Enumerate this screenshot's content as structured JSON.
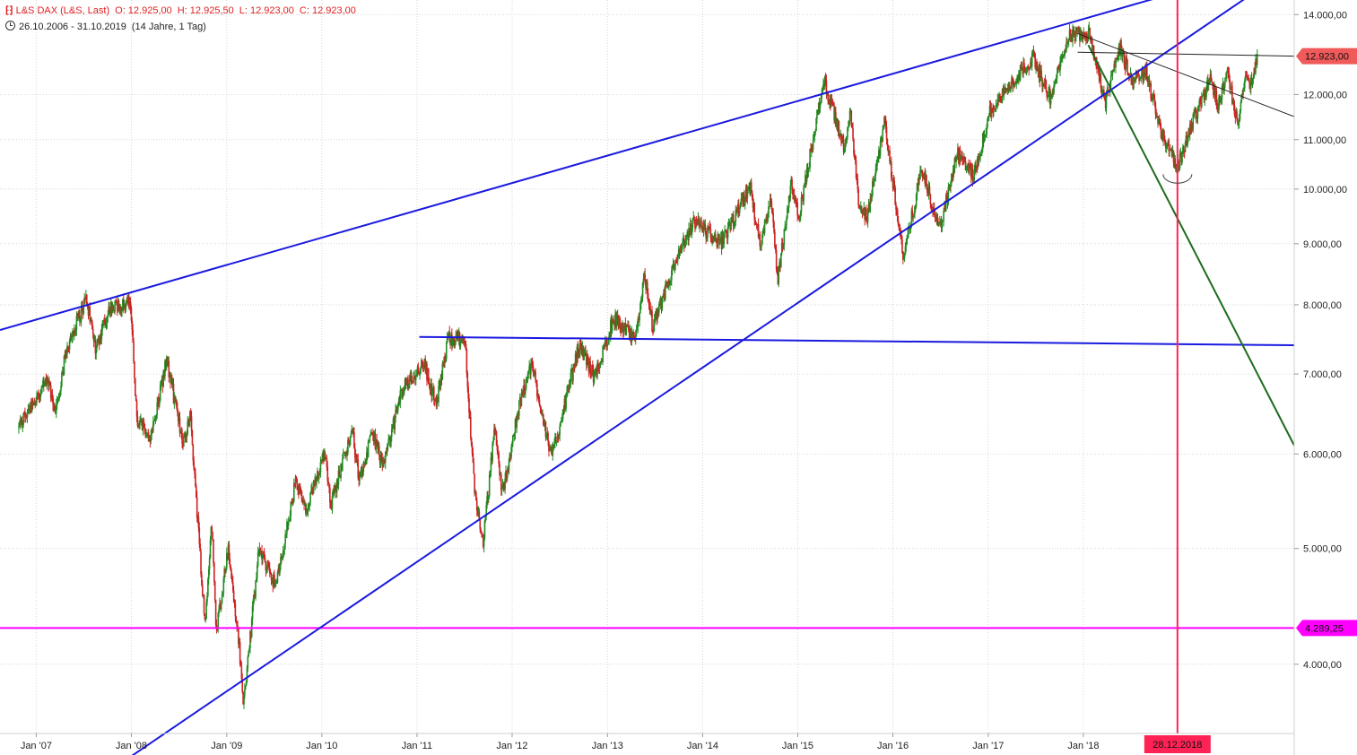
{
  "header": {
    "symbol": "L&S DAX (L&S, Last)",
    "open": "O: 12.925,00",
    "high": "H: 12.925,50",
    "low": "L: 12.923,00",
    "close": "C: 12.923,00",
    "range": "26.10.2006 - 31.10.2019",
    "span": "(14 Jahre, 1 Tag)"
  },
  "colors": {
    "up": "#228b22",
    "down": "#cc2222",
    "trend_blue": "#1a1ae0",
    "trend_green": "#1e6b1e",
    "support_magenta": "#ff00ff",
    "crosshair": "#ff2255",
    "last_badge": "#f05a5a"
  },
  "chart_data": {
    "type": "candlestick",
    "y_scale": "log",
    "ylim": [
      3500,
      14400
    ],
    "xlim": [
      "2006-08-15",
      "2020-03-20"
    ],
    "y_ticks": [
      {
        "value": 4000,
        "label": "4.000,00"
      },
      {
        "value": 5000,
        "label": "5.000,00"
      },
      {
        "value": 6000,
        "label": "6.000,00"
      },
      {
        "value": 7000,
        "label": "7.000,00"
      },
      {
        "value": 8000,
        "label": "8.000,00"
      },
      {
        "value": 9000,
        "label": "9.000,00"
      },
      {
        "value": 10000,
        "label": "10.000,00"
      },
      {
        "value": 11000,
        "label": "11.000,00"
      },
      {
        "value": 12000,
        "label": "12.000,00"
      },
      {
        "value": 14000,
        "label": "14.000,00"
      }
    ],
    "x_ticks": [
      {
        "date": "2007-01-01",
        "label": "Jan '07"
      },
      {
        "date": "2008-01-01",
        "label": "Jan '08"
      },
      {
        "date": "2009-01-01",
        "label": "Jan '09"
      },
      {
        "date": "2010-01-01",
        "label": "Jan '10"
      },
      {
        "date": "2011-01-01",
        "label": "Jan '11"
      },
      {
        "date": "2012-01-01",
        "label": "Jan '12"
      },
      {
        "date": "2013-01-01",
        "label": "Jan '13"
      },
      {
        "date": "2014-01-01",
        "label": "Jan '14"
      },
      {
        "date": "2015-01-01",
        "label": "Jan '15"
      },
      {
        "date": "2016-01-01",
        "label": "Jan '16"
      },
      {
        "date": "2017-01-01",
        "label": "Jan '17"
      },
      {
        "date": "2018-01-01",
        "label": "Jan '18"
      }
    ],
    "grid": true,
    "price_path": [
      [
        "2006-10-26",
        6300
      ],
      [
        "2006-12-01",
        6550
      ],
      [
        "2007-02-15",
        6900
      ],
      [
        "2007-03-14",
        6500
      ],
      [
        "2007-05-01",
        7400
      ],
      [
        "2007-07-13",
        8100
      ],
      [
        "2007-08-16",
        7350
      ],
      [
        "2007-10-10",
        7950
      ],
      [
        "2007-12-28",
        8050
      ],
      [
        "2008-01-22",
        6400
      ],
      [
        "2008-03-17",
        6200
      ],
      [
        "2008-05-15",
        7200
      ],
      [
        "2008-07-15",
        6150
      ],
      [
        "2008-08-15",
        6450
      ],
      [
        "2008-10-10",
        4300
      ],
      [
        "2008-11-04",
        5300
      ],
      [
        "2008-11-21",
        4250
      ],
      [
        "2009-01-06",
        5000
      ],
      [
        "2009-02-15",
        4200
      ],
      [
        "2009-03-06",
        3700
      ],
      [
        "2009-05-05",
        5000
      ],
      [
        "2009-07-10",
        4650
      ],
      [
        "2009-09-23",
        5700
      ],
      [
        "2009-11-02",
        5350
      ],
      [
        "2010-01-12",
        6050
      ],
      [
        "2010-02-05",
        5450
      ],
      [
        "2010-04-26",
        6300
      ],
      [
        "2010-05-25",
        5700
      ],
      [
        "2010-07-15",
        6250
      ],
      [
        "2010-08-25",
        5850
      ],
      [
        "2010-11-05",
        6800
      ],
      [
        "2011-01-28",
        7150
      ],
      [
        "2011-03-16",
        6600
      ],
      [
        "2011-05-02",
        7520
      ],
      [
        "2011-07-05",
        7450
      ],
      [
        "2011-08-09",
        5600
      ],
      [
        "2011-09-12",
        5050
      ],
      [
        "2011-10-27",
        6350
      ],
      [
        "2011-11-23",
        5550
      ],
      [
        "2012-01-30",
        6600
      ],
      [
        "2012-03-16",
        7150
      ],
      [
        "2012-06-01",
        5950
      ],
      [
        "2012-09-14",
        7400
      ],
      [
        "2012-11-14",
        6950
      ],
      [
        "2013-01-24",
        7800
      ],
      [
        "2013-04-18",
        7450
      ],
      [
        "2013-05-22",
        8500
      ],
      [
        "2013-06-24",
        7650
      ],
      [
        "2013-09-20",
        8700
      ],
      [
        "2013-12-02",
        9400
      ],
      [
        "2014-03-14",
        9000
      ],
      [
        "2014-07-03",
        10050
      ],
      [
        "2014-08-08",
        9000
      ],
      [
        "2014-09-19",
        9800
      ],
      [
        "2014-10-16",
        8400
      ],
      [
        "2014-12-05",
        10100
      ],
      [
        "2015-01-05",
        9450
      ],
      [
        "2015-04-10",
        12350
      ],
      [
        "2015-06-29",
        10800
      ],
      [
        "2015-07-20",
        11700
      ],
      [
        "2015-08-24",
        9650
      ],
      [
        "2015-09-24",
        9450
      ],
      [
        "2015-11-30",
        11400
      ],
      [
        "2016-02-11",
        8750
      ],
      [
        "2016-04-20",
        10400
      ],
      [
        "2016-06-27",
        9250
      ],
      [
        "2016-09-05",
        10700
      ],
      [
        "2016-11-04",
        10250
      ],
      [
        "2017-01-10",
        11650
      ],
      [
        "2017-06-20",
        12900
      ],
      [
        "2017-08-29",
        11900
      ],
      [
        "2017-11-03",
        13450
      ],
      [
        "2018-01-23",
        13550
      ],
      [
        "2018-03-26",
        11800
      ],
      [
        "2018-05-22",
        13150
      ],
      [
        "2018-07-05",
        12300
      ],
      [
        "2018-08-28",
        12550
      ],
      [
        "2018-10-26",
        11200
      ],
      [
        "2018-12-27",
        10400
      ],
      [
        "2019-02-18",
        11300
      ],
      [
        "2019-05-03",
        12400
      ],
      [
        "2019-06-03",
        11750
      ],
      [
        "2019-07-04",
        12600
      ],
      [
        "2019-08-15",
        11400
      ],
      [
        "2019-09-20",
        12450
      ],
      [
        "2019-10-01",
        12150
      ],
      [
        "2019-10-31",
        12923
      ]
    ],
    "drawings": [
      {
        "kind": "trendline",
        "color_key": "trend_blue",
        "width": 2,
        "p1": [
          "2006-08-15",
          7620
        ],
        "p2": [
          "2020-03-20",
          15600
        ]
      },
      {
        "kind": "trendline",
        "color_key": "trend_blue",
        "width": 2,
        "p1": [
          "2008-01-01",
          3350
        ],
        "p2": [
          "2020-03-20",
          15400
        ]
      },
      {
        "kind": "trendline",
        "color_key": "trend_blue",
        "width": 2,
        "p1": [
          "2011-01-10",
          7520
        ],
        "p2": [
          "2020-03-20",
          7400
        ]
      },
      {
        "kind": "trendline",
        "color_key": "trend_green",
        "width": 2,
        "p1": [
          "2018-01-20",
          13200
        ],
        "p2": [
          "2020-03-20",
          6100
        ]
      },
      {
        "kind": "trendline",
        "color_key": "black",
        "width": 1,
        "p1": [
          "2017-12-10",
          13500
        ],
        "p2": [
          "2020-03-20",
          11500
        ]
      },
      {
        "kind": "trendline",
        "color_key": "black",
        "width": 1,
        "p1": [
          "2017-12-10",
          13020
        ],
        "p2": [
          "2020-03-20",
          12923
        ]
      }
    ],
    "support_level": {
      "value": 4289.25,
      "label": "4.289,25"
    },
    "last_price": {
      "value": 12923,
      "label": "12.923,00"
    },
    "crosshair": {
      "date": "2018-12-28",
      "label": "28.12.2018"
    },
    "low_marker": {
      "date": "2018-12-28",
      "value": 10150
    }
  }
}
